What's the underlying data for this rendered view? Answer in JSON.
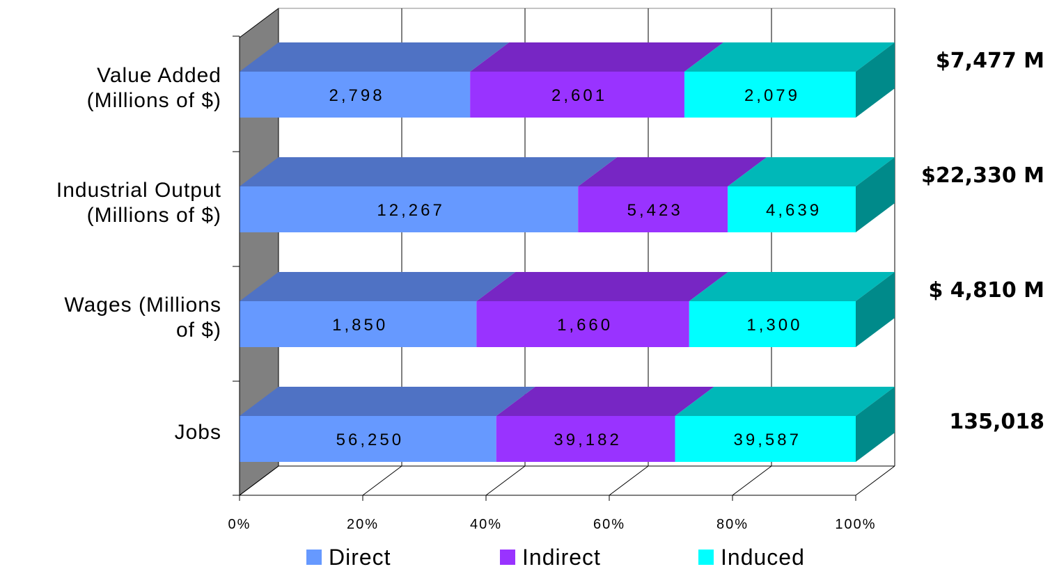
{
  "chart_data": {
    "type": "bar",
    "orientation": "horizontal",
    "stacked": "percent",
    "three_d": true,
    "categories": [
      [
        "Value Added",
        "(Millions of $)"
      ],
      [
        "Industrial Output",
        "(Millions of $)"
      ],
      [
        "Wages (Millions",
        "of $)"
      ],
      [
        "Jobs"
      ]
    ],
    "series": [
      {
        "name": "Direct",
        "values": [
          2798,
          12267,
          1850,
          56250
        ],
        "labels": [
          "2,798",
          "12,267",
          "1,850",
          "56,250"
        ],
        "color": "#6699ff",
        "top_color": "#4f72c4"
      },
      {
        "name": "Indirect",
        "values": [
          2601,
          5423,
          1660,
          39182
        ],
        "labels": [
          "2,601",
          "5,423",
          "1,660",
          "39,182"
        ],
        "color": "#9933ff",
        "top_color": "#7726c4"
      },
      {
        "name": "Induced",
        "values": [
          2079,
          4639,
          1300,
          39587
        ],
        "labels": [
          "2,079",
          "4,639",
          "1,300",
          "39,587"
        ],
        "color": "#00ffff",
        "top_color": "#00b8b8",
        "side_color": "#008a8a"
      }
    ],
    "totals": [
      "$7,477 M",
      "$22,330 M",
      "$ 4,810 M",
      "135,018"
    ],
    "x_ticks": [
      "0%",
      "20%",
      "40%",
      "60%",
      "80%",
      "100%"
    ],
    "xlim": [
      0,
      100
    ],
    "grid": true,
    "legend_position": "bottom",
    "colors": {
      "wall": "#808080",
      "gridline": "#000000"
    }
  }
}
